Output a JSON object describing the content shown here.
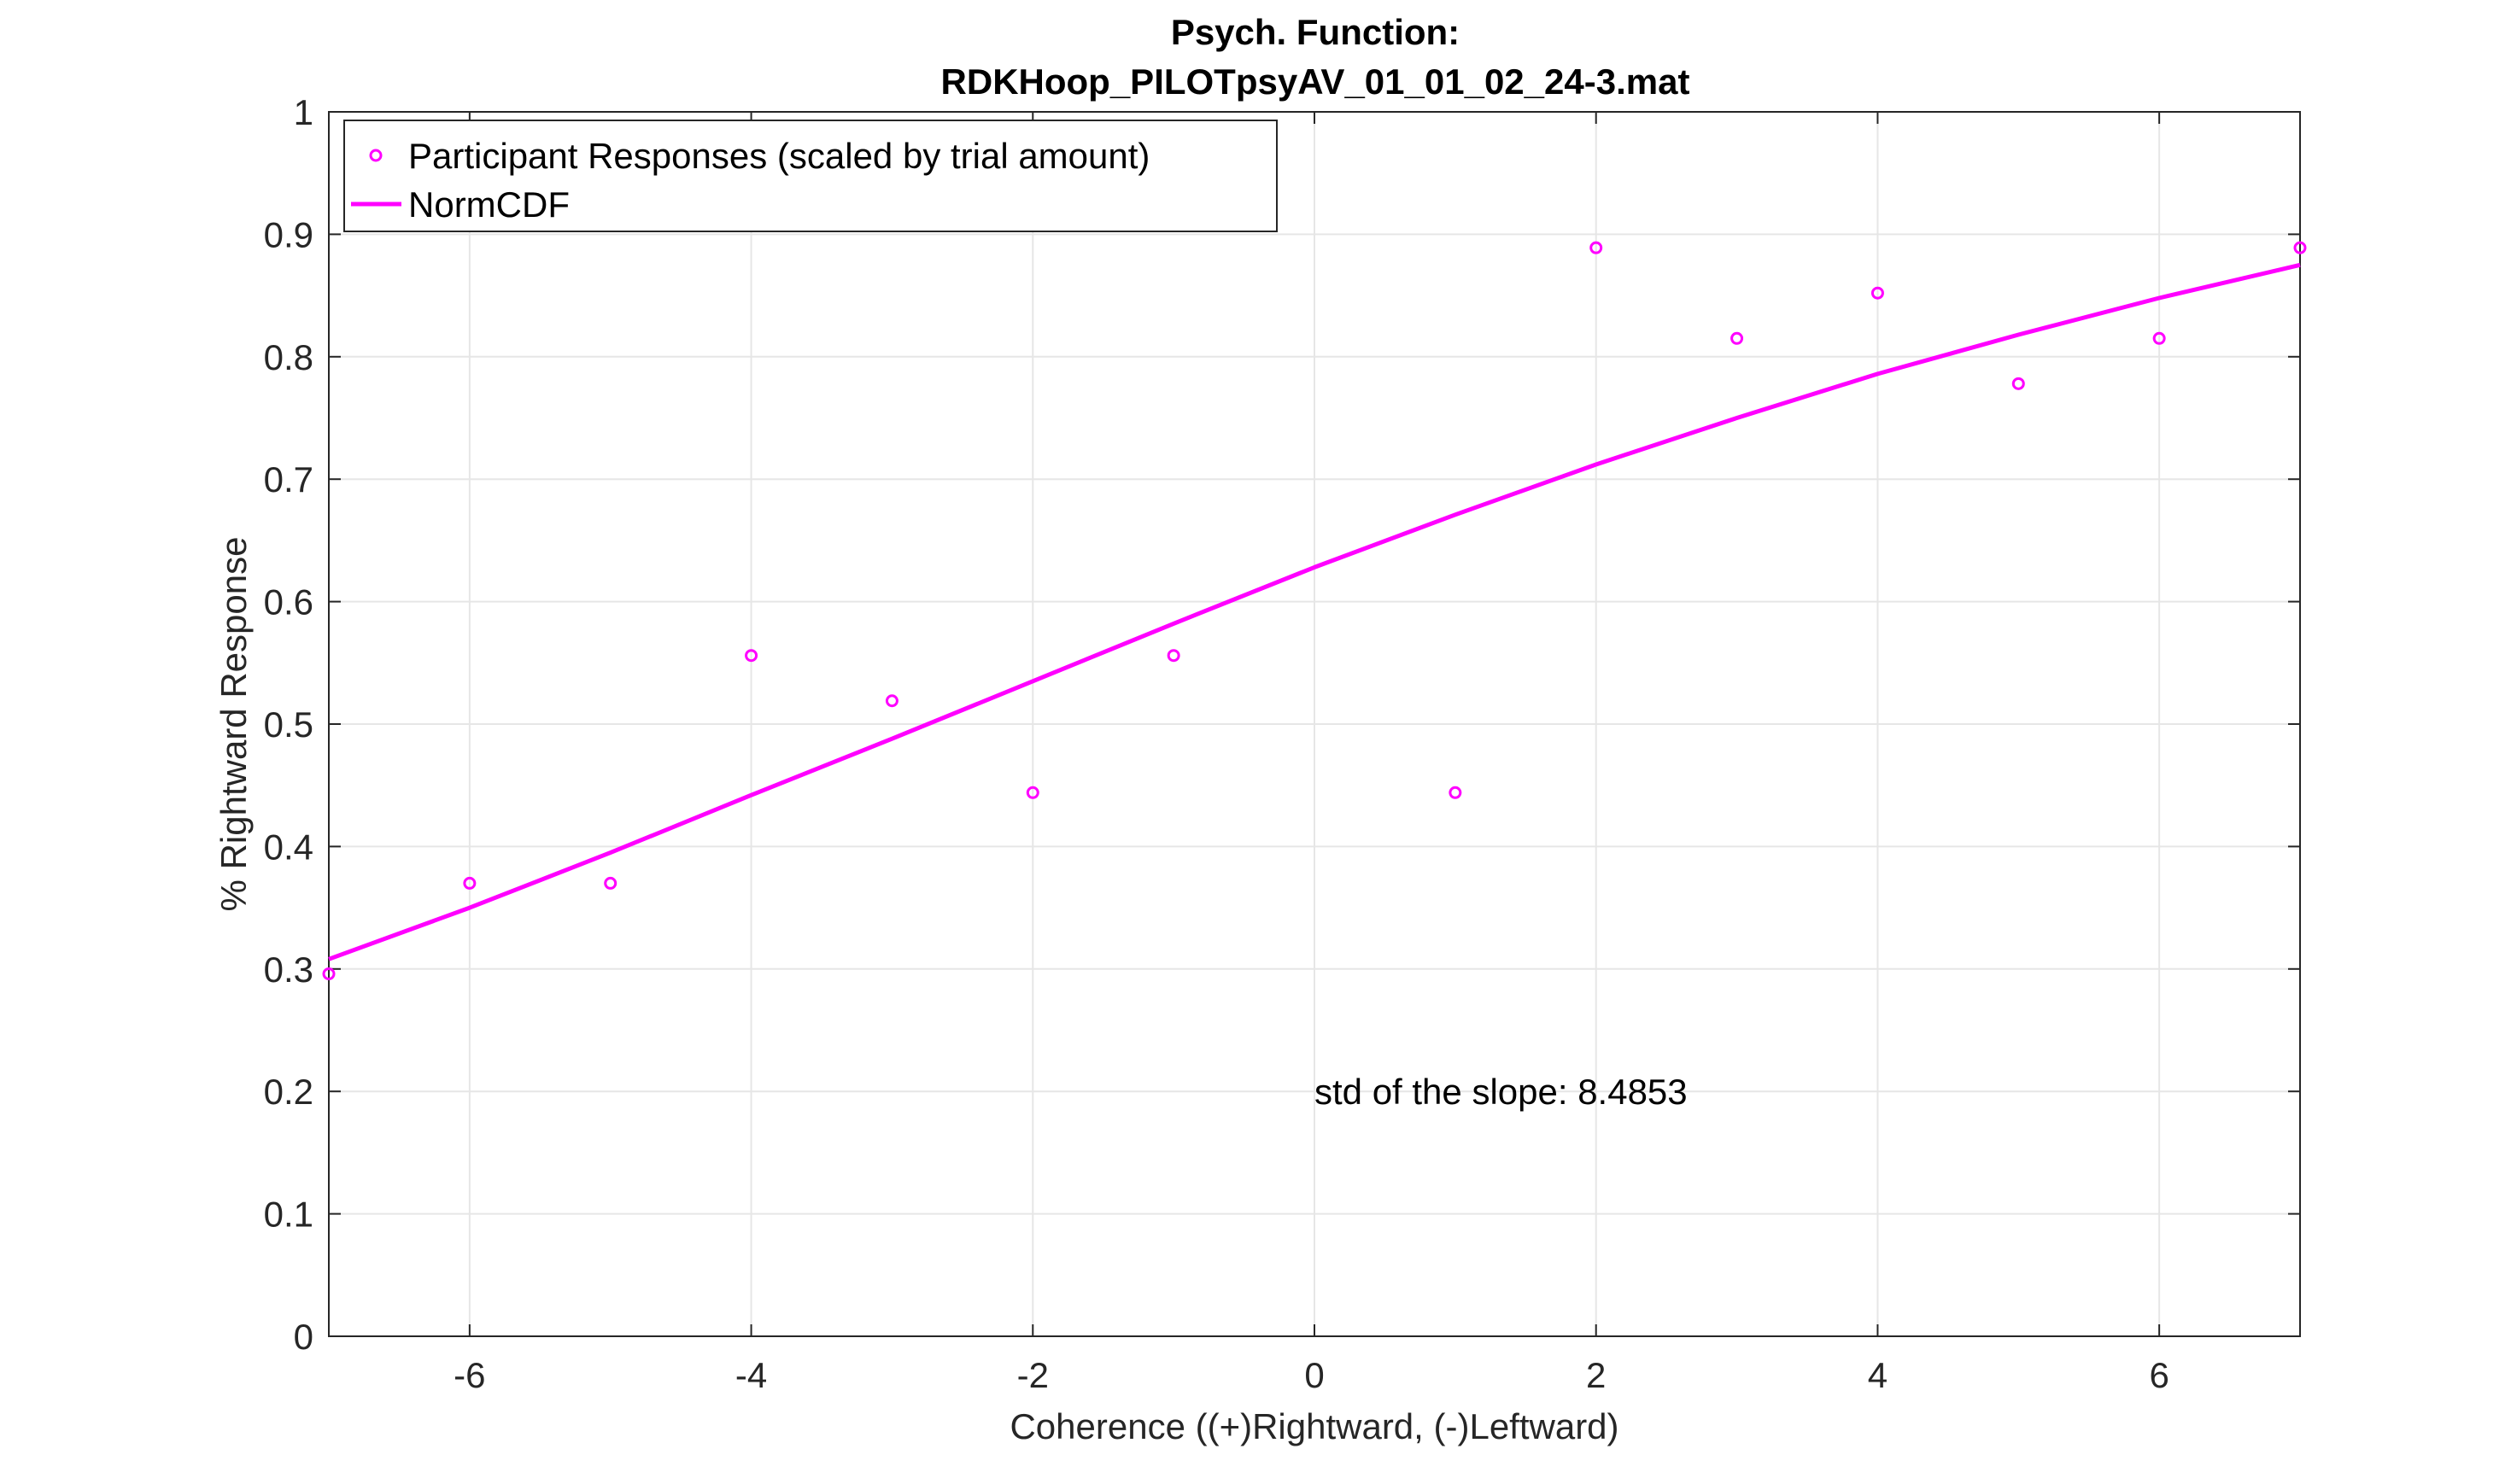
{
  "chart_data": {
    "type": "scatter",
    "title": [
      "Psych. Function:",
      "RDKHoop_PILOTpsyAV_01_01_02_24-3.mat"
    ],
    "xlabel": "Coherence ((+)Rightward, (-)Leftward)",
    "ylabel": "% Rightward Response",
    "xlim": [
      -7,
      7
    ],
    "ylim": [
      0,
      1
    ],
    "xticks": [
      -6,
      -4,
      -2,
      0,
      2,
      4,
      6
    ],
    "xtick_labels": [
      "-6",
      "-4",
      "-2",
      "0",
      "2",
      "4",
      "6"
    ],
    "yticks": [
      0,
      0.1,
      0.2,
      0.3,
      0.4,
      0.5,
      0.6,
      0.7,
      0.8,
      0.9,
      1
    ],
    "ytick_labels": [
      "0",
      "0.1",
      "0.2",
      "0.3",
      "0.4",
      "0.5",
      "0.6",
      "0.7",
      "0.8",
      "0.9",
      "1"
    ],
    "grid": true,
    "legend_position": "top-left",
    "color": "#ff00ff",
    "series": [
      {
        "name": "Participant Responses (scaled by trial amount)",
        "type": "scatter",
        "x": [
          -7,
          -6,
          -5,
          -4,
          -3,
          -2,
          -1,
          1,
          2,
          3,
          4,
          5,
          6,
          7
        ],
        "y": [
          0.296,
          0.37,
          0.37,
          0.556,
          0.519,
          0.444,
          0.556,
          0.444,
          0.889,
          0.815,
          0.852,
          0.778,
          0.815,
          0.889
        ]
      },
      {
        "name": "NormCDF",
        "type": "line",
        "x": [
          -7,
          -6,
          -5,
          -4,
          -3,
          -2,
          -1,
          0,
          1,
          2,
          3,
          4,
          5,
          6,
          7
        ],
        "y": [
          0.308,
          0.35,
          0.395,
          0.442,
          0.488,
          0.535,
          0.582,
          0.628,
          0.671,
          0.712,
          0.75,
          0.786,
          0.818,
          0.848,
          0.875
        ]
      }
    ],
    "annotations": [
      {
        "text": "std of the slope: 8.4853",
        "x": 0,
        "y": 0.2
      }
    ]
  }
}
